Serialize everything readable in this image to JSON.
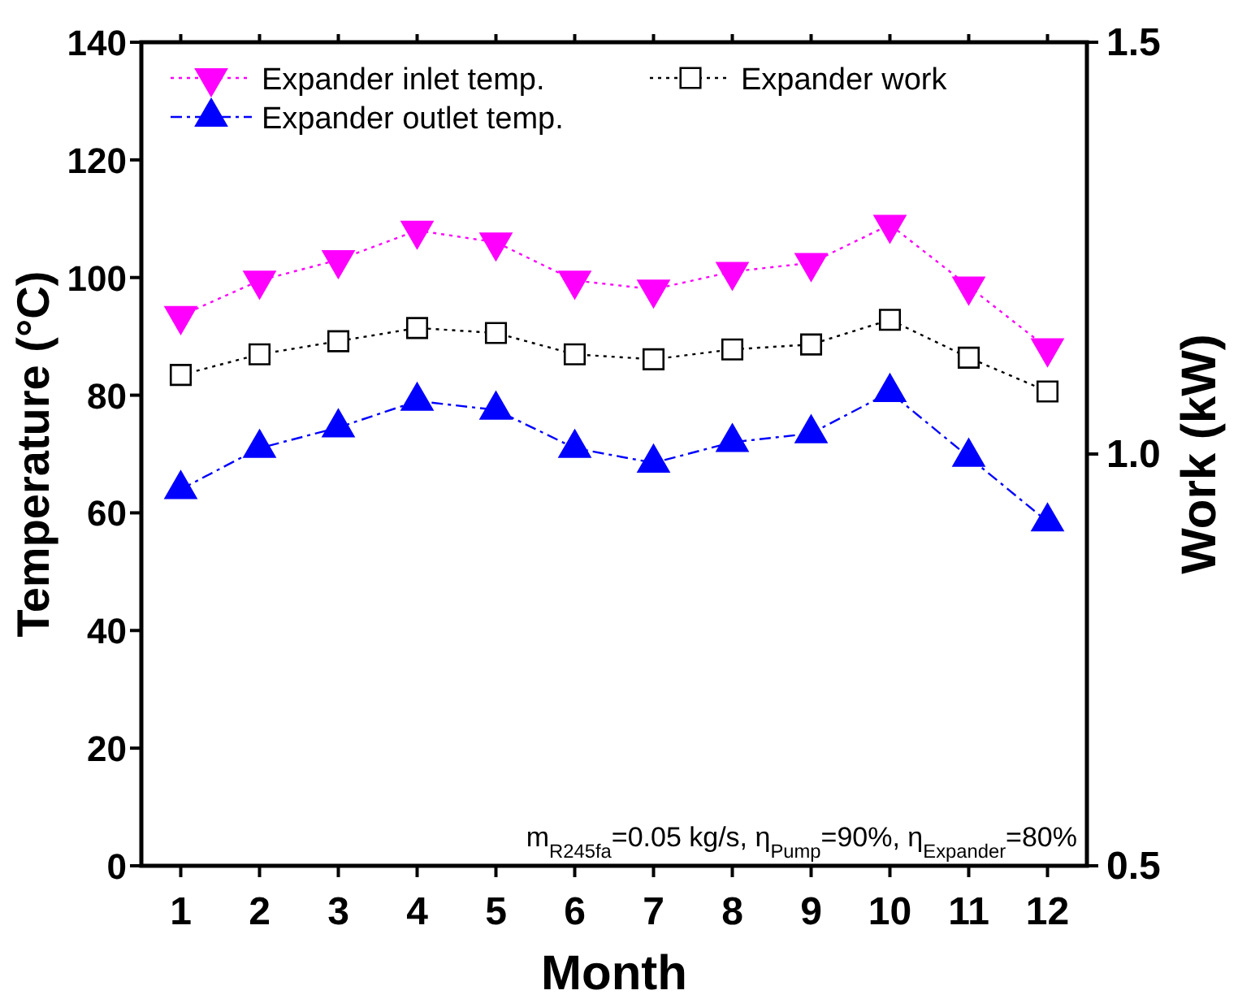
{
  "chart_data": {
    "type": "line",
    "xlabel": "Month",
    "ylabel": "Temperature (°C)",
    "y2label": "Work (kW)",
    "x": [
      1,
      2,
      3,
      4,
      5,
      6,
      7,
      8,
      9,
      10,
      11,
      12
    ],
    "xlim": [
      0.5,
      12.5
    ],
    "xticks": [
      1,
      2,
      3,
      4,
      5,
      6,
      7,
      8,
      9,
      10,
      11,
      12
    ],
    "ylim": [
      0,
      140
    ],
    "yticks": [
      0,
      20,
      40,
      60,
      80,
      100,
      120,
      140
    ],
    "y2lim": [
      0.5,
      1.5
    ],
    "y2ticks": [
      {
        "value": 0.5,
        "label": "0.5"
      },
      {
        "value": 1,
        "label": "1.0"
      },
      {
        "value": 1.5,
        "label": "1.5"
      }
    ],
    "series": [
      {
        "name": "Expander  inlet temp.",
        "color": "#ff00ff",
        "marker": "triangle-down",
        "line_style": "dotted",
        "values": [
          93.5,
          99.5,
          103,
          108,
          106,
          99.5,
          98,
          101,
          102.5,
          109,
          98.5,
          88
        ]
      },
      {
        "name": "Expander work",
        "color": "#000000",
        "marker": "square",
        "line_style": "dotted",
        "axis": "y2",
        "values": [
          1.096,
          1.121,
          1.137,
          1.153,
          1.147,
          1.121,
          1.115,
          1.127,
          1.133,
          1.163,
          1.117,
          1.076
        ]
      },
      {
        "name": "Expander  outlet temp.",
        "color": "#0000ff",
        "marker": "triangle",
        "line_style": "dashdot",
        "values": [
          64,
          71,
          74.5,
          79,
          77.5,
          71,
          68.5,
          72,
          73.5,
          80.5,
          69.5,
          58.5
        ]
      }
    ],
    "legend": "top left",
    "grid": false,
    "annotations": [
      "m$_{R245fa}$=0.05 kg/s, η$_{Pump}$=90%, η$_{Expander}$=80%"
    ]
  }
}
